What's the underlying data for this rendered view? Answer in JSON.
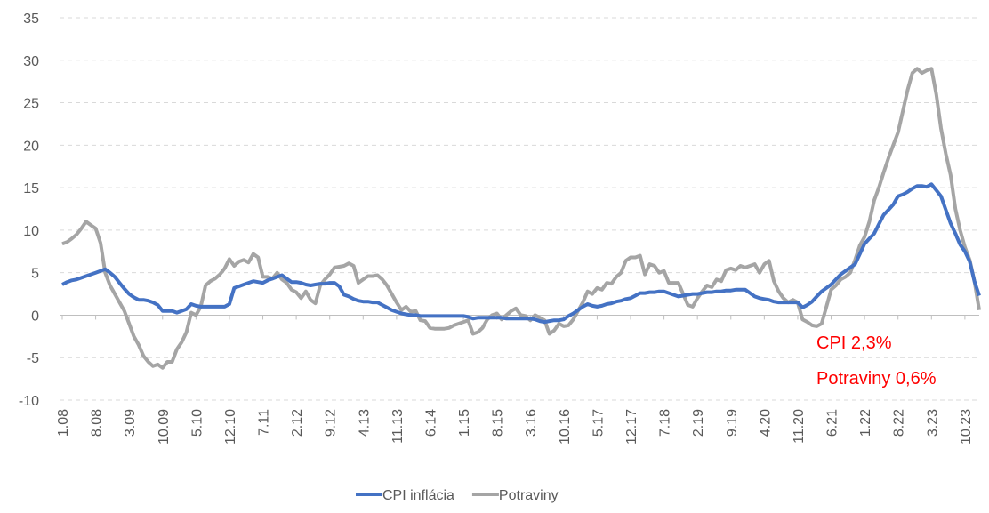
{
  "chart_data": {
    "type": "line",
    "categories": [
      "1.08",
      null,
      null,
      null,
      null,
      null,
      null,
      "8.08",
      null,
      null,
      null,
      null,
      null,
      null,
      "3.09",
      null,
      null,
      null,
      null,
      null,
      null,
      "10.09",
      null,
      null,
      null,
      null,
      null,
      null,
      "5.10",
      null,
      null,
      null,
      null,
      null,
      null,
      "12.10",
      null,
      null,
      null,
      null,
      null,
      null,
      "7.11",
      null,
      null,
      null,
      null,
      null,
      null,
      "2.12",
      null,
      null,
      null,
      null,
      null,
      null,
      "9.12",
      null,
      null,
      null,
      null,
      null,
      null,
      "4.13",
      null,
      null,
      null,
      null,
      null,
      null,
      "11.13",
      null,
      null,
      null,
      null,
      null,
      null,
      "6.14",
      null,
      null,
      null,
      null,
      null,
      null,
      "1.15",
      null,
      null,
      null,
      null,
      null,
      null,
      "8.15",
      null,
      null,
      null,
      null,
      null,
      null,
      "3.16",
      null,
      null,
      null,
      null,
      null,
      null,
      "10.16",
      null,
      null,
      null,
      null,
      null,
      null,
      "5.17",
      null,
      null,
      null,
      null,
      null,
      null,
      "12.17",
      null,
      null,
      null,
      null,
      null,
      null,
      "7.18",
      null,
      null,
      null,
      null,
      null,
      null,
      "2.19",
      null,
      null,
      null,
      null,
      null,
      null,
      "9.19",
      null,
      null,
      null,
      null,
      null,
      null,
      "4.20",
      null,
      null,
      null,
      null,
      null,
      null,
      "11.20",
      null,
      null,
      null,
      null,
      null,
      null,
      "6.21",
      null,
      null,
      null,
      null,
      null,
      null,
      "1.22",
      null,
      null,
      null,
      null,
      null,
      null,
      "8.22",
      null,
      null,
      null,
      null,
      null,
      null,
      "3.23",
      null,
      null,
      null,
      null,
      null,
      null,
      "10.23",
      null,
      null,
      null
    ],
    "series": [
      {
        "name": "CPI inflácia",
        "color": "#4472c4",
        "values": [
          3.6,
          3.9,
          4.1,
          4.2,
          4.4,
          4.6,
          4.8,
          5.0,
          5.2,
          5.4,
          5.0,
          4.5,
          3.8,
          3.1,
          2.5,
          2.1,
          1.8,
          1.8,
          1.7,
          1.5,
          1.2,
          0.5,
          0.5,
          0.5,
          0.3,
          0.5,
          0.7,
          1.3,
          1.1,
          1.0,
          1.0,
          1.0,
          1.0,
          1.0,
          1.0,
          1.3,
          3.2,
          3.4,
          3.6,
          3.8,
          4.0,
          3.9,
          3.8,
          4.1,
          4.3,
          4.5,
          4.7,
          4.3,
          3.9,
          3.9,
          3.8,
          3.6,
          3.5,
          3.6,
          3.7,
          3.7,
          3.8,
          3.8,
          3.4,
          2.4,
          2.2,
          1.9,
          1.7,
          1.6,
          1.6,
          1.5,
          1.5,
          1.2,
          0.9,
          0.6,
          0.4,
          0.2,
          0.1,
          0.0,
          0.0,
          -0.1,
          -0.1,
          -0.1,
          -0.1,
          -0.1,
          -0.1,
          -0.1,
          -0.1,
          -0.1,
          -0.1,
          -0.2,
          -0.4,
          -0.3,
          -0.3,
          -0.3,
          -0.3,
          -0.3,
          -0.3,
          -0.4,
          -0.4,
          -0.4,
          -0.4,
          -0.4,
          -0.4,
          -0.5,
          -0.7,
          -0.8,
          -0.7,
          -0.6,
          -0.6,
          -0.5,
          -0.1,
          0.2,
          0.6,
          1.0,
          1.3,
          1.1,
          1.0,
          1.1,
          1.3,
          1.4,
          1.6,
          1.7,
          1.9,
          2.0,
          2.3,
          2.6,
          2.6,
          2.7,
          2.7,
          2.8,
          2.8,
          2.6,
          2.4,
          2.2,
          2.3,
          2.4,
          2.5,
          2.5,
          2.6,
          2.7,
          2.7,
          2.8,
          2.8,
          2.9,
          2.9,
          3.0,
          3.0,
          3.0,
          2.6,
          2.2,
          2.0,
          1.9,
          1.8,
          1.6,
          1.5,
          1.5,
          1.5,
          1.5,
          1.5,
          0.9,
          1.2,
          1.6,
          2.2,
          2.8,
          3.2,
          3.6,
          4.2,
          4.8,
          5.2,
          5.6,
          6.0,
          7.2,
          8.4,
          9.0,
          9.6,
          10.7,
          11.8,
          12.4,
          13.0,
          14.0,
          14.2,
          14.5,
          14.9,
          15.2,
          15.2,
          15.1,
          15.4,
          14.7,
          14.0,
          12.4,
          10.8,
          9.6,
          8.3,
          7.5,
          6.3,
          4.0,
          2.3
        ]
      },
      {
        "name": "Potraviny",
        "color": "#a5a5a5",
        "values": [
          8.4,
          8.6,
          9.0,
          9.5,
          10.2,
          11.0,
          10.6,
          10.2,
          8.5,
          5.0,
          3.5,
          2.5,
          1.5,
          0.5,
          -1.0,
          -2.5,
          -3.5,
          -4.8,
          -5.5,
          -6.0,
          -5.8,
          -6.2,
          -5.5,
          -5.5,
          -4.0,
          -3.2,
          -2.0,
          0.3,
          0.0,
          1.0,
          3.5,
          4.0,
          4.3,
          4.8,
          5.5,
          6.6,
          5.8,
          6.3,
          6.5,
          6.2,
          7.2,
          6.8,
          4.5,
          4.5,
          4.3,
          5.0,
          4.2,
          3.8,
          3.0,
          2.7,
          2.0,
          2.8,
          1.8,
          1.4,
          3.5,
          4.2,
          4.8,
          5.6,
          5.7,
          5.8,
          6.1,
          5.8,
          3.8,
          4.2,
          4.6,
          4.6,
          4.7,
          4.2,
          3.5,
          2.5,
          1.5,
          0.6,
          1.0,
          0.4,
          0.5,
          -0.6,
          -0.7,
          -1.5,
          -1.6,
          -1.6,
          -1.6,
          -1.5,
          -1.2,
          -1.0,
          -0.8,
          -0.6,
          -2.2,
          -2.0,
          -1.5,
          -0.5,
          0.0,
          0.2,
          -0.5,
          0.0,
          0.5,
          0.8,
          0.0,
          -0.1,
          -0.6,
          0.0,
          -0.3,
          -0.6,
          -2.2,
          -1.8,
          -1.0,
          -1.3,
          -1.2,
          -0.5,
          0.5,
          1.5,
          2.8,
          2.5,
          3.2,
          3.0,
          3.8,
          3.7,
          4.5,
          5.0,
          6.4,
          6.8,
          6.8,
          7.0,
          4.8,
          6.0,
          5.8,
          5.0,
          5.2,
          3.8,
          3.8,
          3.8,
          2.5,
          1.2,
          1.0,
          2.0,
          2.8,
          3.5,
          3.3,
          4.2,
          4.0,
          5.3,
          5.5,
          5.3,
          5.8,
          5.6,
          5.8,
          6.0,
          5.0,
          6.0,
          6.4,
          4.0,
          2.8,
          2.0,
          1.5,
          1.8,
          1.5,
          -0.5,
          -0.8,
          -1.2,
          -1.3,
          -1.0,
          1.0,
          3.0,
          3.5,
          4.2,
          4.5,
          5.0,
          6.5,
          8.2,
          9.2,
          11.0,
          13.5,
          15.0,
          16.8,
          18.5,
          20.0,
          21.5,
          24.0,
          26.5,
          28.5,
          29.0,
          28.5,
          28.8,
          29.0,
          26.0,
          22.0,
          19.0,
          16.5,
          12.5,
          10.0,
          8.0,
          6.5,
          4.0,
          0.6
        ]
      }
    ],
    "annotations": [
      "CPI 2,3%",
      "Potraviny 0,6%"
    ],
    "annotation_color": "#ff0000",
    "ylim": [
      -10,
      35
    ],
    "yticks": [
      -10,
      -5,
      0,
      5,
      10,
      15,
      20,
      25,
      30,
      35
    ],
    "grid": true,
    "legend": "bottom"
  }
}
